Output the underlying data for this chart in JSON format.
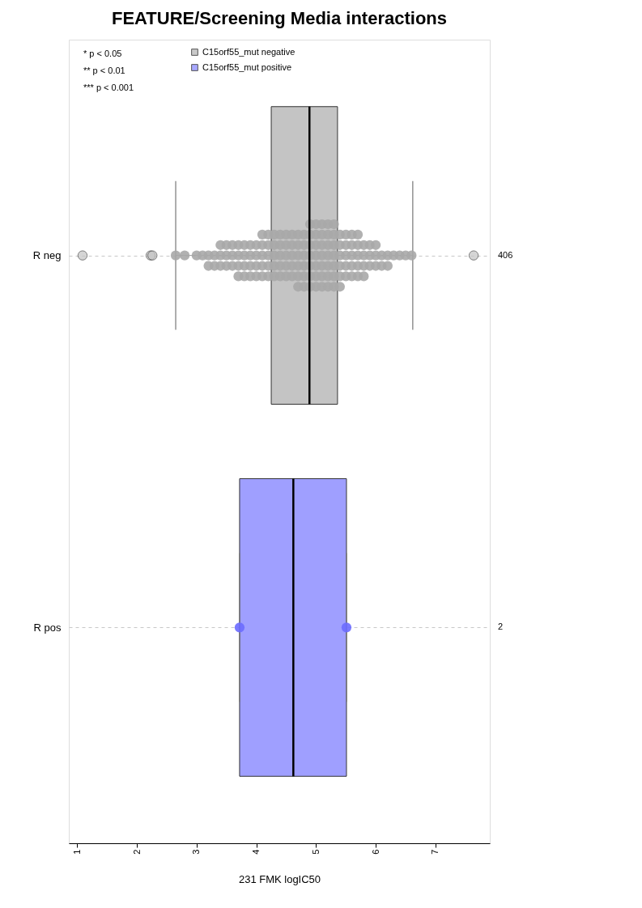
{
  "chart_data": {
    "type": "box",
    "title": "FEATURE/Screening Media interactions",
    "xlabel": "231 FMK logIC50",
    "orientation": "horizontal",
    "categories": [
      "R neg",
      "R pos"
    ],
    "y2_categories": [
      "406",
      "2"
    ],
    "xlim": [
      0.86,
      7.91
    ],
    "xticks": [
      1,
      2,
      3,
      4,
      5,
      6,
      7
    ],
    "grid": "y",
    "legend": "top left",
    "marker": "circle",
    "annotations": [
      "* p < 0.05",
      "** p < 0.01",
      "*** p < 0.001"
    ],
    "series": [
      {
        "name": "C15orf55_mut negative",
        "type": "box",
        "color": "#c4c4c4",
        "boxes": [
          {
            "low": 2.65,
            "q1": 4.25,
            "median": 4.89,
            "q3": 5.36,
            "high": 6.62,
            "outliers": [
              1.09,
              2.23,
              2.26,
              7.64
            ]
          },
          null
        ]
      },
      {
        "name": "C15orf55_mut positive",
        "type": "box",
        "color": "#9f9fff",
        "boxes": [
          null,
          {
            "low": 3.72,
            "q1": 3.72,
            "median": 4.62,
            "q3": 5.51,
            "high": 5.51
          }
        ]
      },
      {
        "type": "scatter",
        "color": "#a8a8a8",
        "x": [
          "R neg",
          "R neg",
          "R neg",
          "R neg",
          "R neg",
          "R neg",
          "R neg",
          "R neg",
          "R neg",
          "R neg",
          "R neg",
          "R neg",
          "R neg",
          "R neg",
          "R neg",
          "R neg",
          "R neg",
          "R neg",
          "R neg",
          "R neg",
          "R neg",
          "R neg",
          "R neg",
          "R neg",
          "R neg",
          "R neg",
          "R neg",
          "R neg",
          "R neg",
          "R neg",
          "R neg",
          "R neg",
          "R neg",
          "R neg",
          "R neg",
          "R neg",
          "R neg",
          "R neg",
          "R neg",
          "R neg",
          "R neg",
          "R neg",
          "R neg",
          "R neg",
          "R neg",
          "R neg",
          "R neg",
          "R neg",
          "R neg",
          "R neg",
          "R neg",
          "R neg",
          "R neg",
          "R neg",
          "R neg",
          "R neg",
          "R neg",
          "R neg",
          "R neg",
          "R neg",
          "R neg",
          "R neg",
          "R neg",
          "R neg",
          "R neg",
          "R neg",
          "R neg",
          "R neg",
          "R neg",
          "R neg",
          "R neg",
          "R neg",
          "R neg",
          "R neg",
          "R neg",
          "R neg",
          "R neg",
          "R neg",
          "R neg",
          "R neg",
          "R neg",
          "R neg",
          "R neg",
          "R neg",
          "R neg",
          "R neg",
          "R neg",
          "R neg",
          "R neg",
          "R neg",
          "R neg",
          "R neg",
          "R neg",
          "R neg",
          "R neg",
          "R neg",
          "R neg",
          "R neg",
          "R neg",
          "R neg",
          "R neg",
          "R neg",
          "R neg",
          "R neg",
          "R neg",
          "R neg",
          "R neg",
          "R neg",
          "R neg",
          "R neg",
          "R neg",
          "R neg",
          "R neg",
          "R neg",
          "R neg",
          "R neg",
          "R neg",
          "R neg",
          "R neg",
          "R neg",
          "R neg",
          "R neg",
          "R neg",
          "R neg",
          "R neg",
          "R neg",
          "R neg",
          "R neg",
          "R neg",
          "R neg",
          "R neg",
          "R neg",
          "R neg",
          "R neg",
          "R neg",
          "R neg",
          "R neg",
          "R neg",
          "R neg",
          "R neg",
          "R neg",
          "R neg",
          "R neg",
          "R neg",
          "R neg",
          "R neg",
          "R neg",
          "R neg",
          "R neg"
        ],
        "values": [
          2.65,
          2.8,
          3.0,
          3.1,
          3.2,
          3.2,
          3.3,
          3.3,
          3.4,
          3.4,
          3.4,
          3.5,
          3.5,
          3.5,
          3.6,
          3.6,
          3.6,
          3.7,
          3.7,
          3.7,
          3.7,
          3.8,
          3.8,
          3.8,
          3.8,
          3.9,
          3.9,
          3.9,
          3.9,
          4.0,
          4.0,
          4.0,
          4.0,
          4.1,
          4.1,
          4.1,
          4.1,
          4.1,
          4.2,
          4.2,
          4.2,
          4.2,
          4.2,
          4.3,
          4.3,
          4.3,
          4.3,
          4.3,
          4.4,
          4.4,
          4.4,
          4.4,
          4.4,
          4.5,
          4.5,
          4.5,
          4.5,
          4.5,
          4.6,
          4.6,
          4.6,
          4.6,
          4.6,
          4.7,
          4.7,
          4.7,
          4.7,
          4.7,
          4.7,
          4.8,
          4.8,
          4.8,
          4.8,
          4.8,
          4.8,
          4.9,
          4.9,
          4.9,
          4.9,
          4.9,
          4.9,
          4.9,
          5.0,
          5.0,
          5.0,
          5.0,
          5.0,
          5.0,
          5.0,
          5.1,
          5.1,
          5.1,
          5.1,
          5.1,
          5.1,
          5.1,
          5.2,
          5.2,
          5.2,
          5.2,
          5.2,
          5.2,
          5.2,
          5.3,
          5.3,
          5.3,
          5.3,
          5.3,
          5.3,
          5.3,
          5.4,
          5.4,
          5.4,
          5.4,
          5.4,
          5.4,
          5.5,
          5.5,
          5.5,
          5.5,
          5.5,
          5.6,
          5.6,
          5.6,
          5.6,
          5.6,
          5.7,
          5.7,
          5.7,
          5.7,
          5.7,
          5.8,
          5.8,
          5.8,
          5.8,
          5.9,
          5.9,
          5.9,
          6.0,
          6.0,
          6.0,
          6.1,
          6.1,
          6.2,
          6.2,
          6.3,
          6.4,
          6.5,
          6.6
        ]
      },
      {
        "type": "scatter",
        "color": "#6b6bff",
        "x": [
          "R pos",
          "R pos"
        ],
        "values": [
          3.72,
          5.51
        ]
      }
    ]
  }
}
